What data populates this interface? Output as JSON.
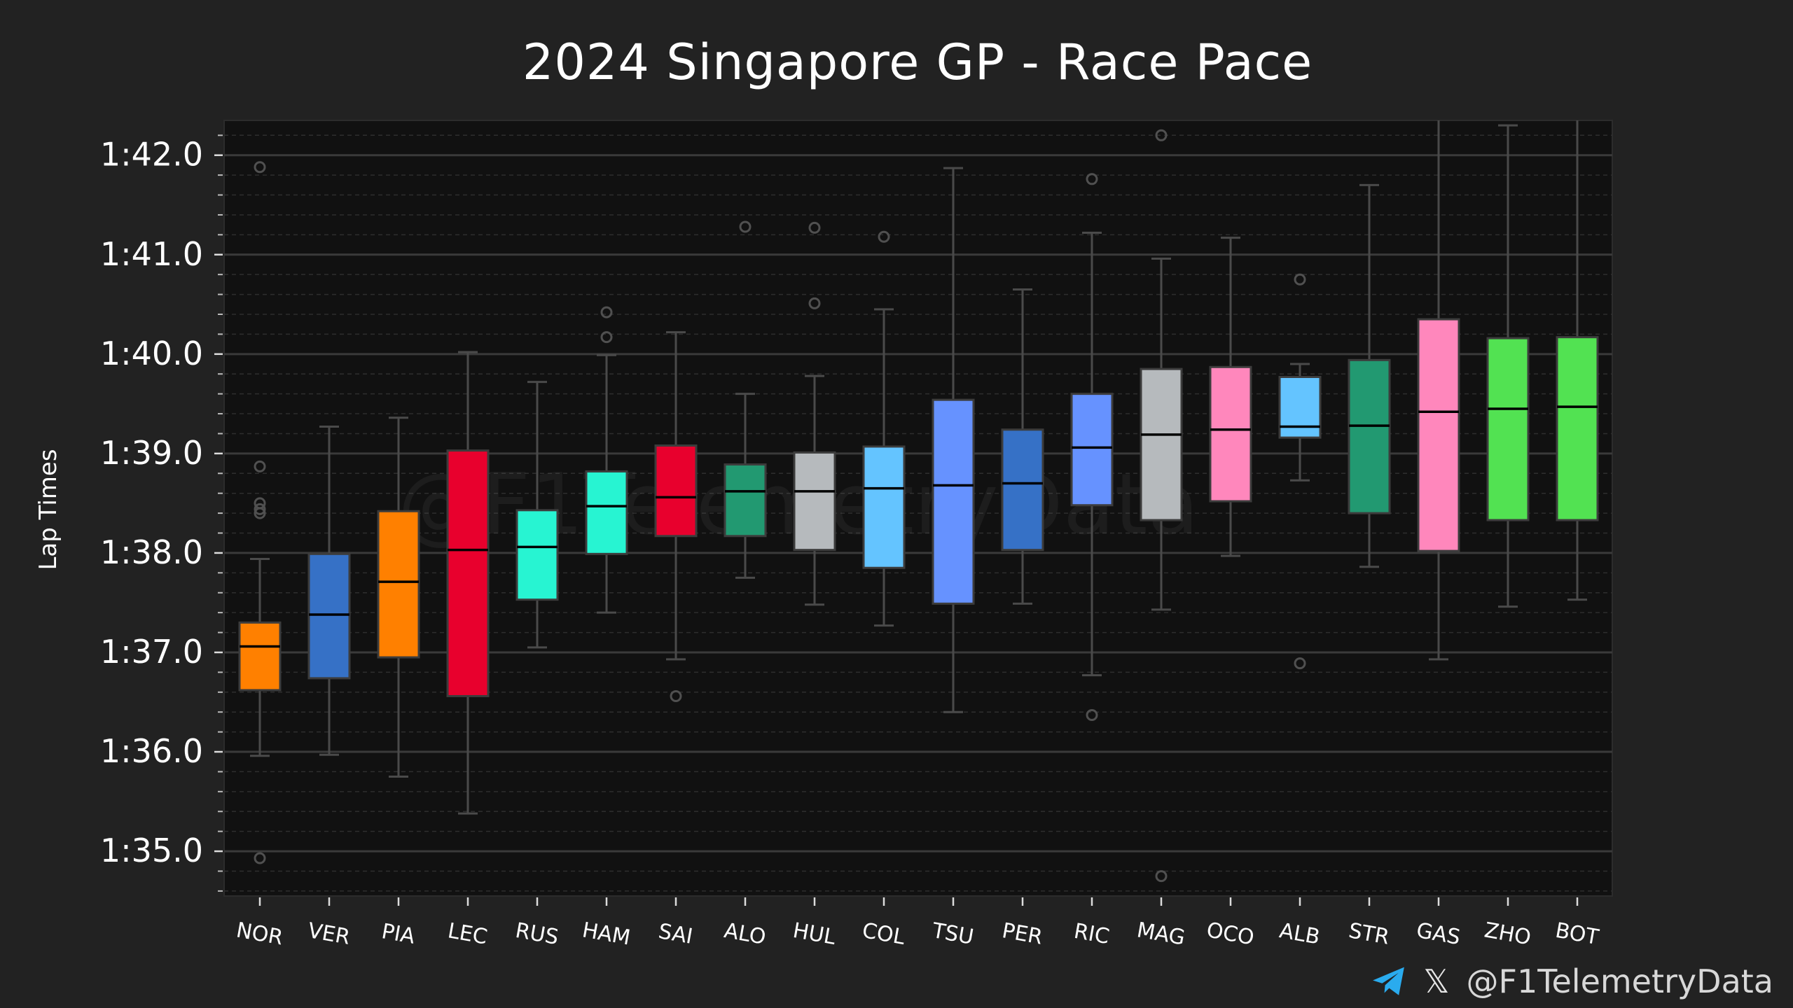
{
  "chart_data": {
    "type": "box",
    "title": "2024 Singapore GP - Race Pace",
    "ylabel": "Lap Times",
    "xlabel": "",
    "watermark": "@F1TelemetryData",
    "yticks": [
      {
        "seconds": 95,
        "label": "1:35.0"
      },
      {
        "seconds": 96,
        "label": "1:36.0"
      },
      {
        "seconds": 97,
        "label": "1:37.0"
      },
      {
        "seconds": 98,
        "label": "1:38.0"
      },
      {
        "seconds": 99,
        "label": "1:39.0"
      },
      {
        "seconds": 100,
        "label": "1:40.0"
      },
      {
        "seconds": 101,
        "label": "1:41.0"
      },
      {
        "seconds": 102,
        "label": "1:42.0"
      }
    ],
    "ylim": [
      94.55,
      102.35
    ],
    "grid": true,
    "drivers": [
      {
        "label": "NOR",
        "color": "#FF8000",
        "q1": 96.62,
        "median": 97.06,
        "q3": 97.3,
        "whislo": 95.96,
        "whishi": 97.94,
        "fliers": [
          94.93,
          98.4,
          98.44,
          98.5,
          98.87,
          101.88
        ]
      },
      {
        "label": "VER",
        "color": "#3671C6",
        "q1": 96.74,
        "median": 97.38,
        "q3": 97.99,
        "whislo": 95.97,
        "whishi": 99.27,
        "fliers": []
      },
      {
        "label": "PIA",
        "color": "#FF8000",
        "q1": 96.95,
        "median": 97.71,
        "q3": 98.42,
        "whislo": 95.75,
        "whishi": 99.36,
        "fliers": []
      },
      {
        "label": "LEC",
        "color": "#E8002D",
        "q1": 96.56,
        "median": 98.03,
        "q3": 99.03,
        "whislo": 95.38,
        "whishi": 100.02,
        "fliers": []
      },
      {
        "label": "RUS",
        "color": "#27F4D2",
        "q1": 97.53,
        "median": 98.06,
        "q3": 98.43,
        "whislo": 97.05,
        "whishi": 99.72,
        "fliers": []
      },
      {
        "label": "HAM",
        "color": "#27F4D2",
        "q1": 97.99,
        "median": 98.47,
        "q3": 98.82,
        "whislo": 97.4,
        "whishi": 99.99,
        "fliers": [
          100.17,
          100.42
        ]
      },
      {
        "label": "SAI",
        "color": "#E8002D",
        "q1": 98.17,
        "median": 98.56,
        "q3": 99.08,
        "whislo": 96.93,
        "whishi": 100.22,
        "fliers": [
          96.56
        ]
      },
      {
        "label": "ALO",
        "color": "#229971",
        "q1": 98.17,
        "median": 98.62,
        "q3": 98.89,
        "whislo": 97.75,
        "whishi": 99.6,
        "fliers": [
          101.28
        ]
      },
      {
        "label": "HUL",
        "color": "#B6BABD",
        "q1": 98.03,
        "median": 98.62,
        "q3": 99.01,
        "whislo": 97.48,
        "whishi": 99.78,
        "fliers": [
          100.51,
          101.27
        ]
      },
      {
        "label": "COL",
        "color": "#64C4FF",
        "q1": 97.85,
        "median": 98.65,
        "q3": 99.07,
        "whislo": 97.27,
        "whishi": 100.45,
        "fliers": [
          101.18
        ]
      },
      {
        "label": "TSU",
        "color": "#6692FF",
        "q1": 97.49,
        "median": 98.68,
        "q3": 99.54,
        "whislo": 96.4,
        "whishi": 101.87,
        "fliers": []
      },
      {
        "label": "PER",
        "color": "#3671C6",
        "q1": 98.03,
        "median": 98.7,
        "q3": 99.24,
        "whislo": 97.49,
        "whishi": 100.65,
        "fliers": []
      },
      {
        "label": "RIC",
        "color": "#6692FF",
        "q1": 98.48,
        "median": 99.06,
        "q3": 99.6,
        "whislo": 96.77,
        "whishi": 101.22,
        "fliers": [
          96.37,
          101.76
        ]
      },
      {
        "label": "MAG",
        "color": "#B6BABD",
        "q1": 98.33,
        "median": 99.19,
        "q3": 99.85,
        "whislo": 97.43,
        "whishi": 100.96,
        "fliers": [
          94.75,
          102.2
        ]
      },
      {
        "label": "OCO",
        "color": "#FF87BC",
        "q1": 98.52,
        "median": 99.24,
        "q3": 99.87,
        "whislo": 97.97,
        "whishi": 101.17,
        "fliers": []
      },
      {
        "label": "ALB",
        "color": "#64C4FF",
        "q1": 99.16,
        "median": 99.27,
        "q3": 99.77,
        "whislo": 98.73,
        "whishi": 99.9,
        "fliers": [
          96.89,
          100.75
        ]
      },
      {
        "label": "STR",
        "color": "#229971",
        "q1": 98.4,
        "median": 99.28,
        "q3": 99.94,
        "whislo": 97.86,
        "whishi": 101.7,
        "fliers": []
      },
      {
        "label": "GAS",
        "color": "#FF87BC",
        "q1": 98.02,
        "median": 99.42,
        "q3": 100.35,
        "whislo": 96.93,
        "whishi": 102.4,
        "fliers": []
      },
      {
        "label": "ZHO",
        "color": "#52E252",
        "q1": 98.33,
        "median": 99.45,
        "q3": 100.16,
        "whislo": 97.46,
        "whishi": 102.3,
        "fliers": []
      },
      {
        "label": "BOT",
        "color": "#52E252",
        "q1": 98.33,
        "median": 99.47,
        "q3": 100.17,
        "whislo": 97.53,
        "whishi": 102.4,
        "fliers": []
      }
    ]
  },
  "footer": {
    "handle": "@F1TelemetryData",
    "telegram_icon": "telegram-icon",
    "x_icon": "x-logo-icon",
    "telegram_color": "#2AABEE"
  }
}
